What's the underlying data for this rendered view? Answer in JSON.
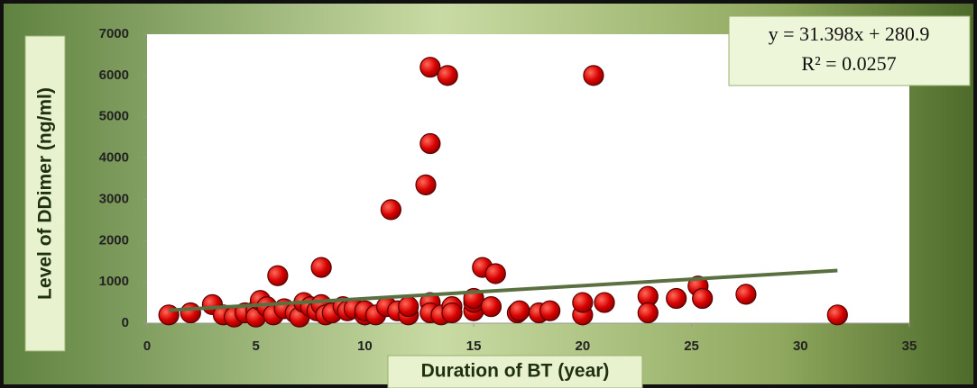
{
  "chart_data": {
    "type": "scatter",
    "x_label": "Duration of BT (year)",
    "y_label": "Level of DDimer (ng/ml)",
    "xlim": [
      0,
      35
    ],
    "ylim": [
      0,
      7000
    ],
    "xticks": [
      0,
      5,
      10,
      15,
      20,
      25,
      30,
      35
    ],
    "yticks": [
      0,
      1000,
      2000,
      3000,
      4000,
      5000,
      6000,
      7000
    ],
    "grid": false,
    "series": [
      {
        "color": "#d00000",
        "x": [
          1,
          2,
          3,
          3.5,
          4,
          4.5,
          5,
          5,
          5.2,
          5.5,
          5.8,
          6,
          6.3,
          6.8,
          7,
          7.2,
          7.5,
          7.8,
          8,
          8,
          8.2,
          8.5,
          9,
          9.2,
          9.5,
          10,
          10,
          10.5,
          11,
          11.2,
          11.5,
          12,
          12,
          12.8,
          13,
          13,
          13,
          13,
          13.5,
          13.8,
          14,
          14,
          15,
          15,
          15,
          15.4,
          15.8,
          16,
          17,
          17.1,
          18,
          18.5,
          20,
          20,
          20.5,
          21,
          23,
          23,
          24.3,
          25.3,
          25.5,
          27.5,
          31.7
        ],
        "values": [
          200,
          250,
          450,
          200,
          150,
          250,
          300,
          150,
          550,
          400,
          200,
          1150,
          350,
          250,
          150,
          500,
          400,
          300,
          1350,
          450,
          200,
          250,
          400,
          300,
          350,
          200,
          300,
          200,
          400,
          2750,
          300,
          200,
          400,
          3350,
          6200,
          4350,
          500,
          250,
          200,
          6000,
          400,
          250,
          300,
          500,
          600,
          1350,
          400,
          1200,
          250,
          300,
          250,
          300,
          200,
          500,
          6000,
          500,
          650,
          250,
          600,
          900,
          600,
          700,
          200
        ]
      }
    ],
    "trendline": {
      "equation": "y = 31.398x  + 280.9",
      "r_squared": "R² = 0.0257",
      "slope": 31.398,
      "intercept": 280.9,
      "color": "#5b7040"
    }
  }
}
